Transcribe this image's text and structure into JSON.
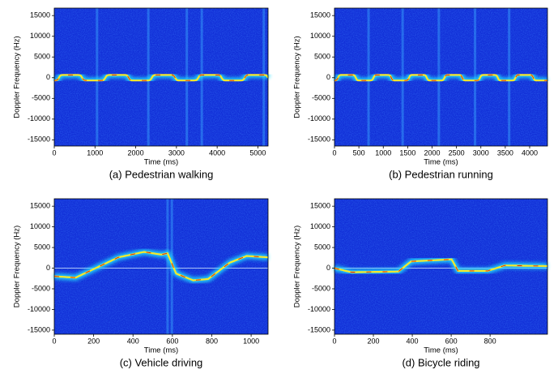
{
  "chart_data": [
    {
      "type": "spectrogram",
      "caption": "(a) Pedestrian walking",
      "xlabel": "Time (ms)",
      "ylabel": "Doppler Frequency (Hz)",
      "xlim": [
        0,
        5250
      ],
      "xticks": [
        0,
        1000,
        2000,
        3000,
        4000,
        5000
      ],
      "ylim": [
        -16500,
        16800
      ],
      "yticks": [
        -15000,
        -10000,
        -5000,
        0,
        5000,
        10000,
        15000
      ]
    },
    {
      "type": "spectrogram",
      "caption": "(b) Pedestrian running",
      "xlabel": "Time (ms)",
      "ylabel": "Doppler Frequency (Hz)",
      "xlim": [
        0,
        4365
      ],
      "xticks": [
        0,
        500,
        1000,
        1500,
        2000,
        2500,
        3000,
        3500,
        4000
      ],
      "ylim": [
        -16500,
        16800
      ],
      "yticks": [
        -15000,
        -10000,
        -5000,
        0,
        5000,
        10000,
        15000
      ]
    },
    {
      "type": "spectrogram",
      "caption": "(c) Vehicle driving",
      "xlabel": "Time (ms)",
      "ylabel": "Doppler Frequency (Hz)",
      "xlim": [
        0,
        1086
      ],
      "xticks": [
        0,
        200,
        400,
        600,
        800,
        1000
      ],
      "ylim": [
        -16000,
        16800
      ],
      "yticks": [
        -15000,
        -10000,
        -5000,
        0,
        5000,
        10000,
        15000
      ]
    },
    {
      "type": "spectrogram",
      "caption": "(d) Bicycle riding",
      "xlabel": "Time (ms)",
      "ylabel": "Doppler Frequency (Hz)",
      "xlim": [
        0,
        1095
      ],
      "xticks": [
        0,
        200,
        400,
        600,
        800
      ],
      "ylim": [
        -16000,
        16800
      ],
      "yticks": [
        -15000,
        -10000,
        -5000,
        0,
        5000,
        10000,
        15000
      ]
    }
  ]
}
